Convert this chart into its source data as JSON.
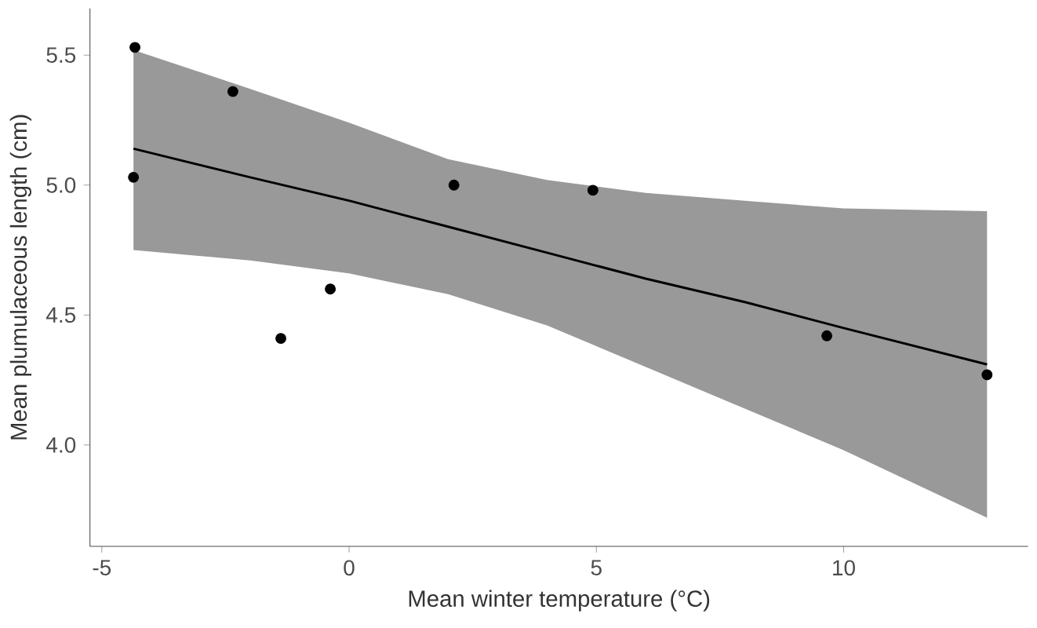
{
  "chart_data": {
    "type": "scatter",
    "xlabel": "Mean winter temperature (°C)",
    "ylabel": "Mean plumulaceous length (cm)",
    "xlim": [
      -5.24,
      13.73
    ],
    "ylim": [
      3.61,
      5.68
    ],
    "xticks": [
      -5,
      0,
      5,
      10
    ],
    "yticks": [
      {
        "value": 4,
        "label": "4.0"
      },
      {
        "value": 4.5,
        "label": "4.5"
      },
      {
        "value": 5,
        "label": "5.0"
      },
      {
        "value": 5.5,
        "label": "5.5"
      }
    ],
    "series": [
      {
        "type": "line",
        "color": "#000000",
        "line_style": "solid",
        "marker": "none",
        "x": [
          -4.36,
          -2,
          0,
          2,
          4,
          6,
          8,
          10,
          12.9
        ],
        "values": [
          5.14,
          5.03,
          4.94,
          4.84,
          4.74,
          4.64,
          4.55,
          4.45,
          4.31
        ],
        "lower": [
          4.75,
          4.71,
          4.66,
          4.58,
          4.46,
          4.3,
          4.14,
          3.98,
          3.72
        ],
        "upper": [
          5.52,
          5.37,
          5.24,
          5.1,
          5.02,
          4.97,
          4.94,
          4.91,
          4.9
        ]
      },
      {
        "color": "#000000",
        "marker": "circle",
        "x": [
          -4.33,
          -4.36,
          -2.35,
          -1.38,
          -0.38,
          2.12,
          4.93,
          9.66,
          12.9
        ],
        "values": [
          5.53,
          5.03,
          5.36,
          4.41,
          4.6,
          5.0,
          4.98,
          4.42,
          4.27
        ]
      }
    ]
  }
}
